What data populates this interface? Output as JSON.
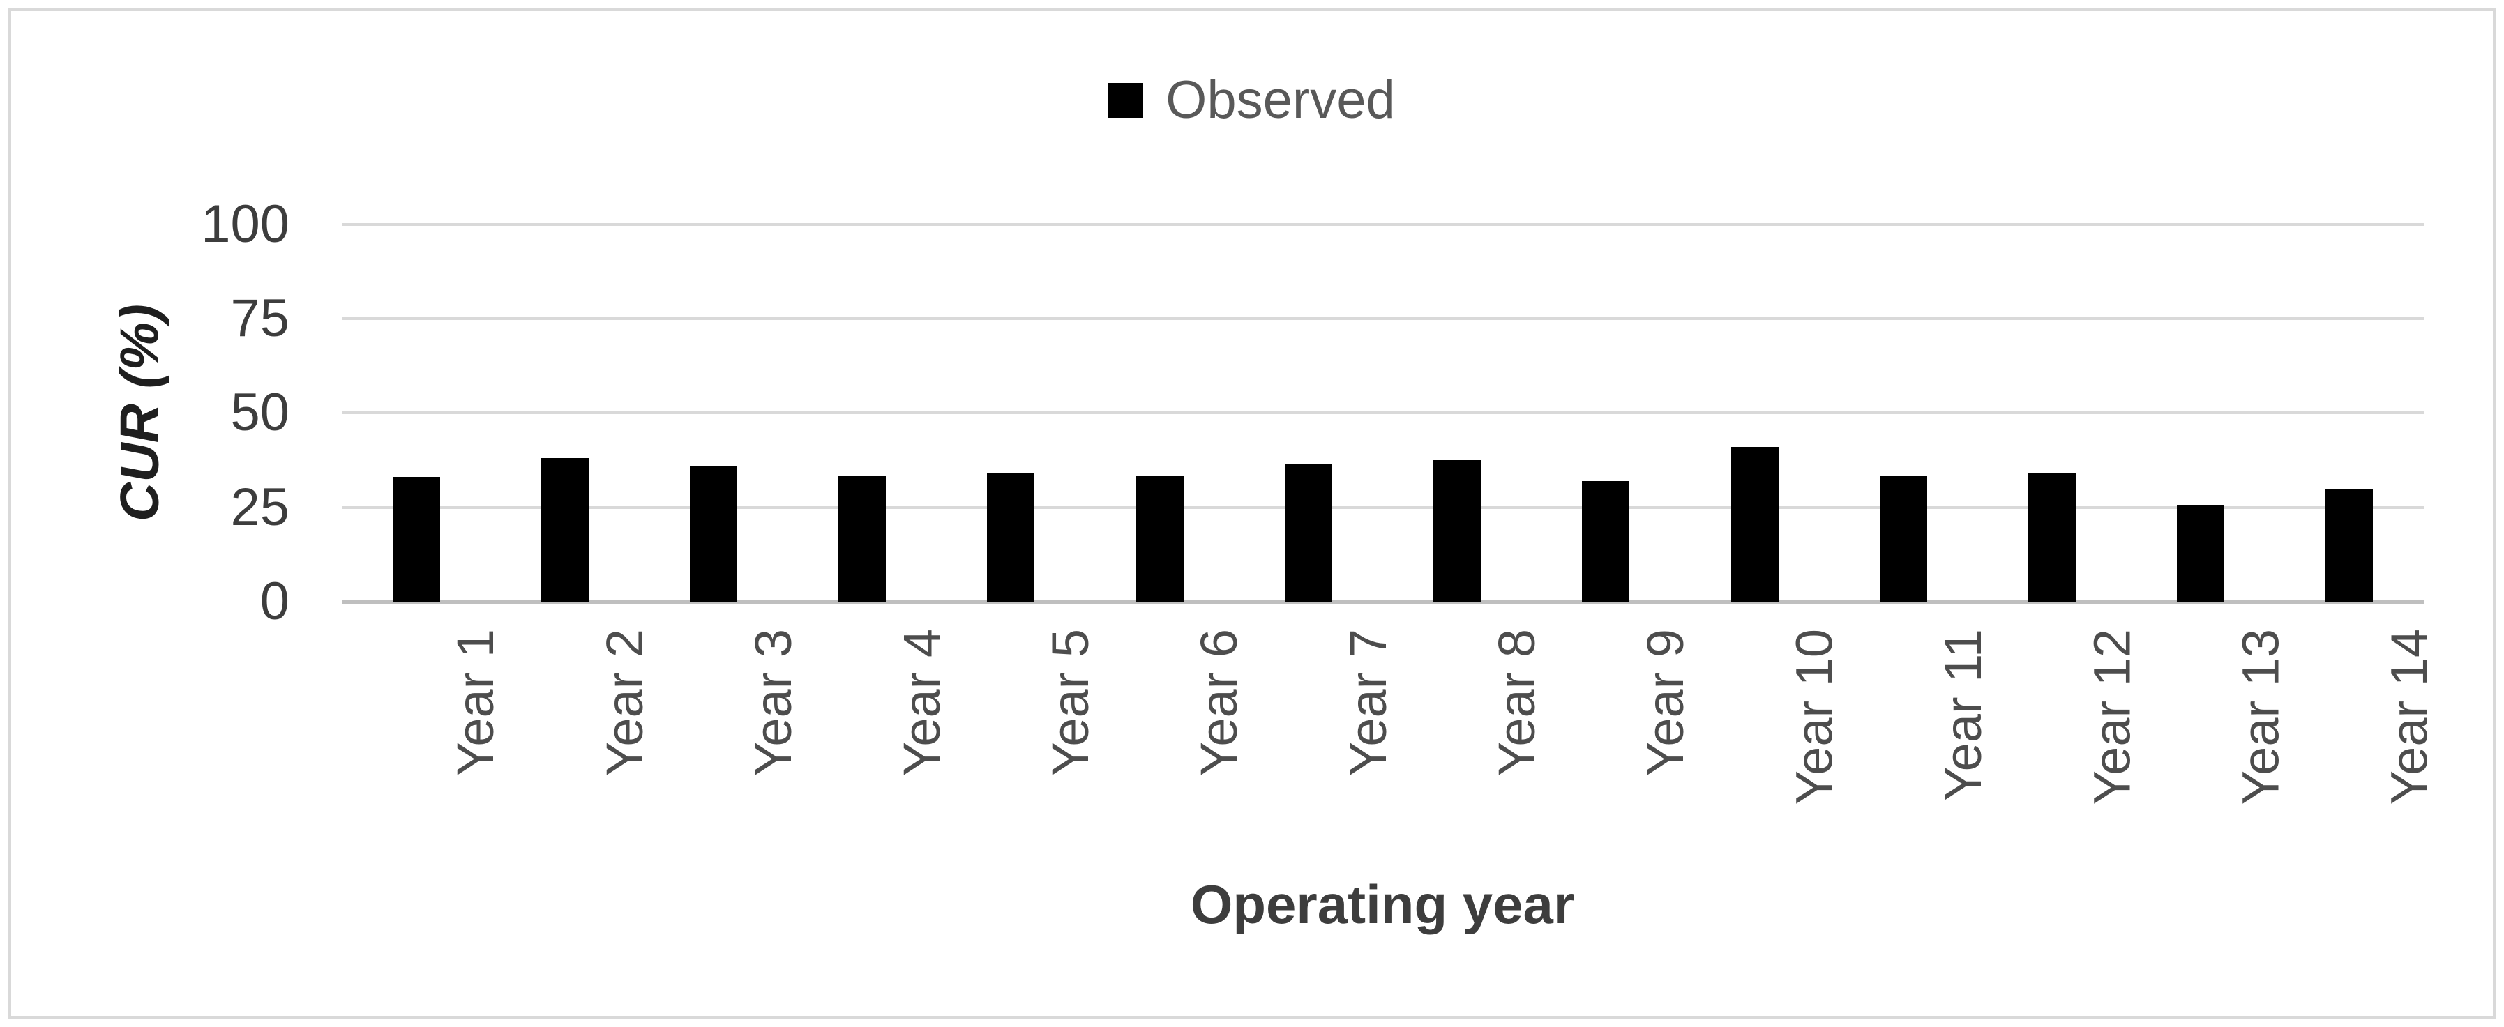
{
  "chart_data": {
    "type": "bar",
    "title": "",
    "categories": [
      "Year 1",
      "Year 2",
      "Year 3",
      "Year 4",
      "Year 5",
      "Year 6",
      "Year 7",
      "Year 8",
      "Year 9",
      "Year 10",
      "Year 11",
      "Year 12",
      "Year 13",
      "Year 14"
    ],
    "series": [
      {
        "name": "Observed",
        "color": "#000000",
        "values": [
          33,
          38,
          36,
          33.5,
          34,
          33.5,
          36.5,
          37.5,
          32,
          41,
          33.5,
          34,
          25.5,
          30
        ]
      }
    ],
    "xlabel": "Operating year",
    "ylabel": "CUR (%)",
    "ylim": [
      0,
      100
    ],
    "yticks": [
      0,
      25,
      50,
      75,
      100
    ],
    "legend_position": "top-center",
    "grid": "horizontal",
    "bar_color": "#000000"
  },
  "colors": {
    "background": "#ffffff",
    "border": "#d9d9d9",
    "gridline": "#d9d9d9",
    "axis_line": "#bfbfbf",
    "bar": "#000000",
    "y_tick_text": "#3d3d3d",
    "x_tick_text": "#4d4d4d",
    "x_axis_title_text": "#3d3d3d",
    "y_axis_title_text": "#1f1f1f",
    "legend_text": "#595959"
  }
}
